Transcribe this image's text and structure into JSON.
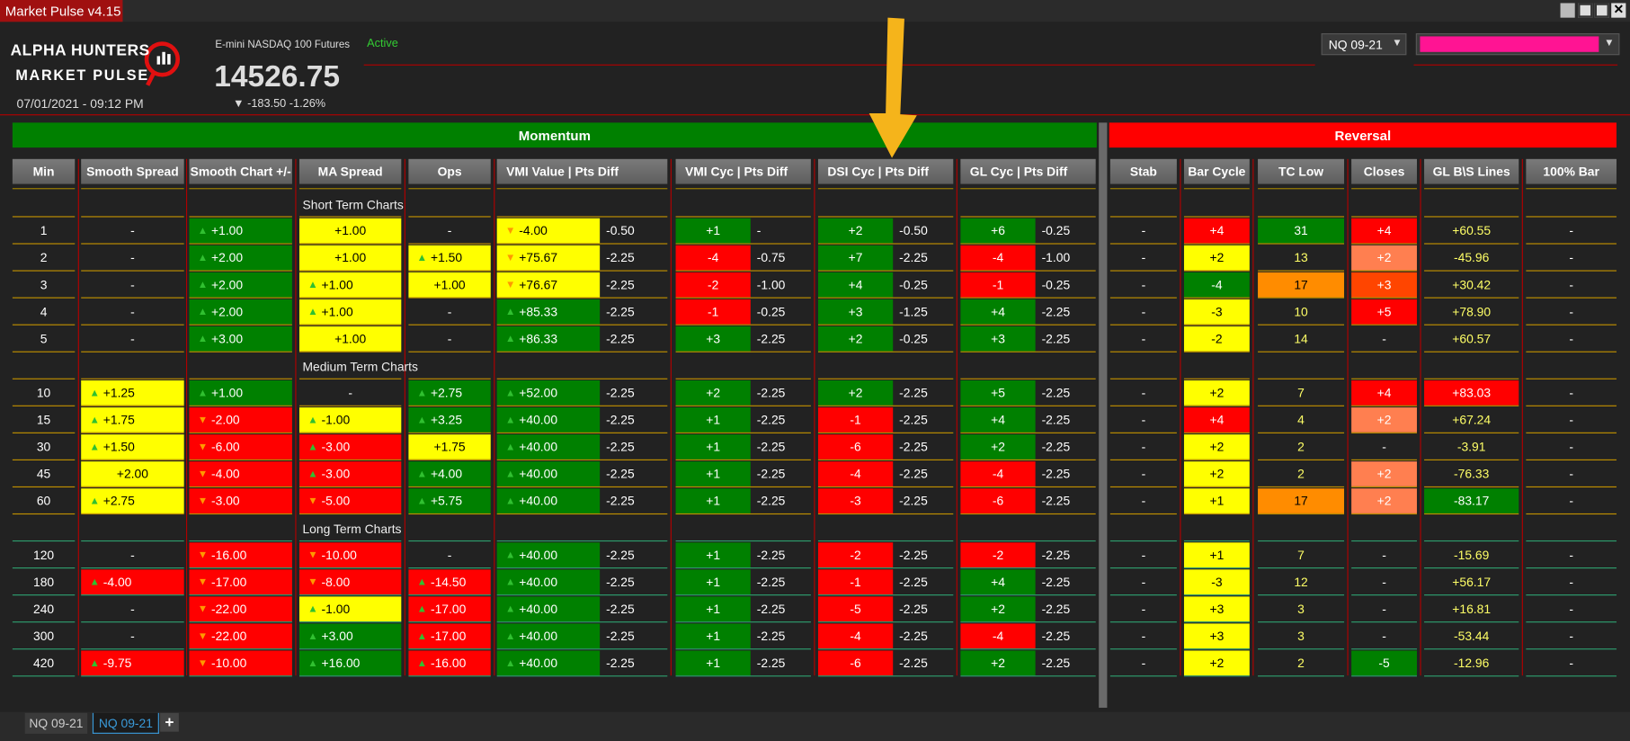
{
  "window": {
    "title": "Market Pulse v4.15"
  },
  "header": {
    "logo_top": "ALPHA HUNTERS",
    "logo_bottom": "MARKET PULSE",
    "datetime": "07/01/2021 - 09:12 PM",
    "instrument": "E-mini NASDAQ 100 Futures",
    "price": "14526.75",
    "change": "▼ -183.50 -1.26%",
    "status": "Active",
    "dropdown": "NQ 09-21"
  },
  "banners": [
    "Momentum",
    "Reversal"
  ],
  "colors": {
    "g": "#008000",
    "r": "#ff0000",
    "y": "#ffff00",
    "o": "#ff8c00",
    "s": "#ff7f50",
    "t": "#ff4500"
  },
  "table": {
    "headers": [
      "Min",
      "Smooth Spread",
      "Smooth Chart +/-",
      "MA Spread",
      "Ops",
      "VMI Value | Pts Diff",
      "VMI Cyc | Pts Diff",
      "DSI Cyc | Pts Diff",
      "GL Cyc | Pts Diff",
      "Stab",
      "Bar Cycle",
      "TC Low",
      "Closes",
      "GL B\\S Lines",
      "100% Bar"
    ],
    "sections": [
      {
        "label": "Short Term Charts",
        "rows": [
          [
            "1",
            "-",
            [
              "▲ +1.00",
              "g"
            ],
            [
              "+1.00",
              "y"
            ],
            "-",
            [
              "▼ -4.00",
              "y"
            ],
            "-0.50",
            [
              "+1",
              "g"
            ],
            "-",
            [
              "+2",
              "g"
            ],
            "-0.50",
            [
              "+6",
              "g"
            ],
            "-0.25",
            "-",
            [
              "+4",
              "r"
            ],
            [
              "31",
              "g"
            ],
            [
              "+4",
              "r"
            ],
            "+60.55",
            "-"
          ],
          [
            "2",
            "-",
            [
              "▲ +2.00",
              "g"
            ],
            [
              "+1.00",
              "y"
            ],
            [
              "▲ +1.50",
              "y"
            ],
            [
              "▼ +75.67",
              "y"
            ],
            "-2.25",
            [
              "-4",
              "r"
            ],
            "-0.75",
            [
              "+7",
              "g"
            ],
            "-2.25",
            [
              "-4",
              "r"
            ],
            "-1.00",
            "-",
            [
              "+2",
              "y"
            ],
            "13",
            [
              "+2",
              "s"
            ],
            "-45.96",
            "-"
          ],
          [
            "3",
            "-",
            [
              "▲ +2.00",
              "g"
            ],
            [
              "▲ +1.00",
              "y"
            ],
            [
              "+1.00",
              "y"
            ],
            [
              "▼ +76.67",
              "y"
            ],
            "-2.25",
            [
              "-2",
              "r"
            ],
            "-1.00",
            [
              "+4",
              "g"
            ],
            "-0.25",
            [
              "-1",
              "r"
            ],
            "-0.25",
            "-",
            [
              "-4",
              "g"
            ],
            [
              "17",
              "o"
            ],
            [
              "+3",
              "t"
            ],
            "+30.42",
            "-"
          ],
          [
            "4",
            "-",
            [
              "▲ +2.00",
              "g"
            ],
            [
              "▲ +1.00",
              "y"
            ],
            "-",
            [
              "▲ +85.33",
              "g"
            ],
            "-2.25",
            [
              "-1",
              "r"
            ],
            "-0.25",
            [
              "+3",
              "g"
            ],
            "-1.25",
            [
              "+4",
              "g"
            ],
            "-2.25",
            "-",
            [
              "-3",
              "y"
            ],
            "10",
            [
              "+5",
              "r"
            ],
            "+78.90",
            "-"
          ],
          [
            "5",
            "-",
            [
              "▲ +3.00",
              "g"
            ],
            [
              "+1.00",
              "y"
            ],
            "-",
            [
              "▲ +86.33",
              "g"
            ],
            "-2.25",
            [
              "+3",
              "g"
            ],
            "-2.25",
            [
              "+2",
              "g"
            ],
            "-0.25",
            [
              "+3",
              "g"
            ],
            "-2.25",
            "-",
            [
              "-2",
              "y"
            ],
            "14",
            "-",
            "+60.57",
            "-"
          ]
        ]
      },
      {
        "label": "Medium Term Charts",
        "rows": [
          [
            "10",
            [
              "▲ +1.25",
              "y"
            ],
            [
              "▲ +1.00",
              "g"
            ],
            "-",
            [
              "▲ +2.75",
              "g"
            ],
            [
              "▲ +52.00",
              "g"
            ],
            "-2.25",
            [
              "+2",
              "g"
            ],
            "-2.25",
            [
              "+2",
              "g"
            ],
            "-2.25",
            [
              "+5",
              "g"
            ],
            "-2.25",
            "-",
            [
              "+2",
              "y"
            ],
            "7",
            [
              "+4",
              "r"
            ],
            [
              "+83.03",
              "r"
            ],
            "-"
          ],
          [
            "15",
            [
              "▲ +1.75",
              "y"
            ],
            [
              "▼ -2.00",
              "r"
            ],
            [
              "▲ -1.00",
              "y"
            ],
            [
              "▲ +3.25",
              "g"
            ],
            [
              "▲ +40.00",
              "g"
            ],
            "-2.25",
            [
              "+1",
              "g"
            ],
            "-2.25",
            [
              "-1",
              "r"
            ],
            "-2.25",
            [
              "+4",
              "g"
            ],
            "-2.25",
            "-",
            [
              "+4",
              "r"
            ],
            "4",
            [
              "+2",
              "s"
            ],
            "+67.24",
            "-"
          ],
          [
            "30",
            [
              "▲ +1.50",
              "y"
            ],
            [
              "▼ -6.00",
              "r"
            ],
            [
              "▲ -3.00",
              "r"
            ],
            [
              "+1.75",
              "y"
            ],
            [
              "▲ +40.00",
              "g"
            ],
            "-2.25",
            [
              "+1",
              "g"
            ],
            "-2.25",
            [
              "-6",
              "r"
            ],
            "-2.25",
            [
              "+2",
              "g"
            ],
            "-2.25",
            "-",
            [
              "+2",
              "y"
            ],
            "2",
            "-",
            "-3.91",
            "-"
          ],
          [
            "45",
            [
              "+2.00",
              "y"
            ],
            [
              "▼ -4.00",
              "r"
            ],
            [
              "▲ -3.00",
              "r"
            ],
            [
              "▲ +4.00",
              "g"
            ],
            [
              "▲ +40.00",
              "g"
            ],
            "-2.25",
            [
              "+1",
              "g"
            ],
            "-2.25",
            [
              "-4",
              "r"
            ],
            "-2.25",
            [
              "-4",
              "r"
            ],
            "-2.25",
            "-",
            [
              "+2",
              "y"
            ],
            "2",
            [
              "+2",
              "s"
            ],
            "-76.33",
            "-"
          ],
          [
            "60",
            [
              "▲ +2.75",
              "y"
            ],
            [
              "▼ -3.00",
              "r"
            ],
            [
              "▼ -5.00",
              "r"
            ],
            [
              "▲ +5.75",
              "g"
            ],
            [
              "▲ +40.00",
              "g"
            ],
            "-2.25",
            [
              "+1",
              "g"
            ],
            "-2.25",
            [
              "-3",
              "r"
            ],
            "-2.25",
            [
              "-6",
              "r"
            ],
            "-2.25",
            "-",
            [
              "+1",
              "y"
            ],
            [
              "17",
              "o"
            ],
            [
              "+2",
              "s"
            ],
            [
              "-83.17",
              "g"
            ],
            "-"
          ]
        ]
      },
      {
        "label": "Long Term Charts",
        "rows": [
          [
            "120",
            "-",
            [
              "▼ -16.00",
              "r"
            ],
            [
              "▼ -10.00",
              "r"
            ],
            "-",
            [
              "▲ +40.00",
              "g"
            ],
            "-2.25",
            [
              "+1",
              "g"
            ],
            "-2.25",
            [
              "-2",
              "r"
            ],
            "-2.25",
            [
              "-2",
              "r"
            ],
            "-2.25",
            "-",
            [
              "+1",
              "y"
            ],
            "7",
            "-",
            "-15.69",
            "-"
          ],
          [
            "180",
            [
              "▲ -4.00",
              "r"
            ],
            [
              "▼ -17.00",
              "r"
            ],
            [
              "▼ -8.00",
              "r"
            ],
            [
              "▲ -14.50",
              "r"
            ],
            [
              "▲ +40.00",
              "g"
            ],
            "-2.25",
            [
              "+1",
              "g"
            ],
            "-2.25",
            [
              "-1",
              "r"
            ],
            "-2.25",
            [
              "+4",
              "g"
            ],
            "-2.25",
            "-",
            [
              "-3",
              "y"
            ],
            "12",
            "-",
            "+56.17",
            "-"
          ],
          [
            "240",
            "-",
            [
              "▼ -22.00",
              "r"
            ],
            [
              "▲ -1.00",
              "y"
            ],
            [
              "▲ -17.00",
              "r"
            ],
            [
              "▲ +40.00",
              "g"
            ],
            "-2.25",
            [
              "+1",
              "g"
            ],
            "-2.25",
            [
              "-5",
              "r"
            ],
            "-2.25",
            [
              "+2",
              "g"
            ],
            "-2.25",
            "-",
            [
              "+3",
              "y"
            ],
            "3",
            "-",
            "+16.81",
            "-"
          ],
          [
            "300",
            "-",
            [
              "▼ -22.00",
              "r"
            ],
            [
              "▲ +3.00",
              "g"
            ],
            [
              "▲ -17.00",
              "r"
            ],
            [
              "▲ +40.00",
              "g"
            ],
            "-2.25",
            [
              "+1",
              "g"
            ],
            "-2.25",
            [
              "-4",
              "r"
            ],
            "-2.25",
            [
              "-4",
              "r"
            ],
            "-2.25",
            "-",
            [
              "+3",
              "y"
            ],
            "3",
            "-",
            "-53.44",
            "-"
          ],
          [
            "420",
            [
              "▲ -9.75",
              "r"
            ],
            [
              "▼ -10.00",
              "r"
            ],
            [
              "▲ +16.00",
              "g"
            ],
            [
              "▲ -16.00",
              "r"
            ],
            [
              "▲ +40.00",
              "g"
            ],
            "-2.25",
            [
              "+1",
              "g"
            ],
            "-2.25",
            [
              "-6",
              "r"
            ],
            "-2.25",
            [
              "+2",
              "g"
            ],
            "-2.25",
            "-",
            [
              "+2",
              "y"
            ],
            "2",
            [
              "-5",
              "g"
            ],
            "-12.96",
            "-"
          ]
        ]
      }
    ]
  },
  "tabs": [
    "NQ 09-21",
    "NQ 09-21",
    "+"
  ]
}
